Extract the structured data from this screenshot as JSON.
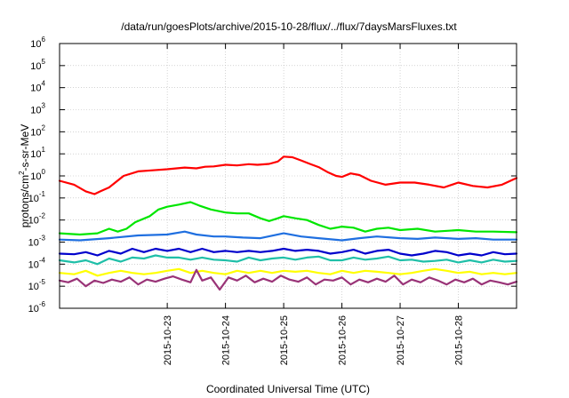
{
  "chart_data": {
    "type": "line",
    "title": "/data/run/goesPlots/archive/2015-10-28/flux/../flux/7daysMarsFluxes.txt",
    "xlabel": "Coordinated Universal Time (UTC)",
    "ylabel": "protons/cm2-s-sr-MeV",
    "ylabel_parts": {
      "pre": "protons/cm",
      "sup": "2",
      "post": "-s-sr-MeV"
    },
    "y_scale": "log",
    "ylim_exp": [
      -6,
      6
    ],
    "y_ticks": [
      {
        "base": "10",
        "exp": "-6"
      },
      {
        "base": "10",
        "exp": "-5"
      },
      {
        "base": "10",
        "exp": "-4"
      },
      {
        "base": "10",
        "exp": "-3"
      },
      {
        "base": "10",
        "exp": "-2"
      },
      {
        "base": "10",
        "exp": "-1"
      },
      {
        "base": "10",
        "exp": "0"
      },
      {
        "base": "10",
        "exp": "1"
      },
      {
        "base": "10",
        "exp": "2"
      },
      {
        "base": "10",
        "exp": "3"
      },
      {
        "base": "10",
        "exp": "4"
      },
      {
        "base": "10",
        "exp": "5"
      },
      {
        "base": "10",
        "exp": "6"
      }
    ],
    "xlim_days": [
      -1.85,
      6.0
    ],
    "x_ticks": [
      {
        "label": "2015-10-23",
        "day": 0
      },
      {
        "label": "2015-10-24",
        "day": 1
      },
      {
        "label": "2015-10-25",
        "day": 2
      },
      {
        "label": "2015-10-26",
        "day": 3
      },
      {
        "label": "2015-10-27",
        "day": 4
      },
      {
        "label": "2015-10-28",
        "day": 5
      }
    ],
    "grid": true,
    "legend": "none",
    "series": [
      {
        "color": "#ff0000",
        "days": [
          -1.85,
          -1.6,
          -1.4,
          -1.25,
          -1.15,
          -1.0,
          -0.75,
          -0.5,
          -0.25,
          0,
          0.3,
          0.5,
          0.65,
          0.8,
          1.0,
          1.2,
          1.4,
          1.55,
          1.75,
          1.9,
          2.0,
          2.15,
          2.3,
          2.45,
          2.6,
          2.75,
          2.9,
          3.0,
          3.15,
          3.3,
          3.5,
          3.75,
          4.0,
          4.25,
          4.5,
          4.75,
          5.0,
          5.25,
          5.5,
          5.75,
          6.0
        ],
        "values": [
          0.6,
          0.4,
          0.2,
          0.15,
          0.2,
          0.3,
          1.0,
          1.6,
          1.8,
          2.0,
          2.4,
          2.2,
          2.6,
          2.7,
          3.2,
          3.0,
          3.4,
          3.2,
          3.5,
          4.5,
          7.5,
          7.0,
          5.0,
          3.5,
          2.5,
          1.5,
          1.0,
          0.9,
          1.3,
          1.1,
          0.6,
          0.4,
          0.5,
          0.5,
          0.4,
          0.3,
          0.5,
          0.35,
          0.3,
          0.4,
          0.8
        ]
      },
      {
        "color": "#00e600",
        "days": [
          -1.85,
          -1.5,
          -1.2,
          -1.0,
          -0.85,
          -0.7,
          -0.55,
          -0.3,
          -0.15,
          0,
          0.2,
          0.4,
          0.55,
          0.75,
          1.0,
          1.2,
          1.4,
          1.6,
          1.75,
          1.9,
          2.0,
          2.2,
          2.4,
          2.6,
          2.8,
          3.0,
          3.2,
          3.4,
          3.6,
          3.8,
          4.0,
          4.3,
          4.6,
          5.0,
          5.3,
          5.6,
          6.0
        ],
        "values": [
          0.0025,
          0.0022,
          0.0025,
          0.004,
          0.003,
          0.004,
          0.008,
          0.015,
          0.03,
          0.04,
          0.05,
          0.065,
          0.045,
          0.03,
          0.022,
          0.02,
          0.02,
          0.012,
          0.009,
          0.012,
          0.015,
          0.012,
          0.01,
          0.006,
          0.004,
          0.005,
          0.0045,
          0.003,
          0.004,
          0.0045,
          0.0035,
          0.004,
          0.003,
          0.0035,
          0.003,
          0.003,
          0.0028
        ]
      },
      {
        "color": "#1f6fe0",
        "days": [
          -1.85,
          -1.5,
          -1.0,
          -0.5,
          0,
          0.3,
          0.5,
          0.8,
          1.0,
          1.3,
          1.6,
          2.0,
          2.3,
          2.6,
          3.0,
          3.3,
          3.6,
          4.0,
          4.3,
          4.6,
          5.0,
          5.3,
          5.6,
          6.0
        ],
        "values": [
          0.0013,
          0.0012,
          0.0015,
          0.002,
          0.0022,
          0.003,
          0.0022,
          0.0018,
          0.0018,
          0.0016,
          0.0015,
          0.0025,
          0.0018,
          0.0015,
          0.0012,
          0.0015,
          0.0018,
          0.0015,
          0.0014,
          0.0016,
          0.0014,
          0.0015,
          0.0013,
          0.0013
        ]
      },
      {
        "color": "#0000cc",
        "days": [
          -1.85,
          -1.6,
          -1.4,
          -1.2,
          -1.0,
          -0.8,
          -0.6,
          -0.4,
          -0.2,
          0,
          0.2,
          0.4,
          0.6,
          0.8,
          1.0,
          1.2,
          1.4,
          1.6,
          1.8,
          2.0,
          2.2,
          2.4,
          2.6,
          2.8,
          3.0,
          3.2,
          3.4,
          3.6,
          3.8,
          4.0,
          4.2,
          4.4,
          4.6,
          4.8,
          5.0,
          5.2,
          5.4,
          5.6,
          5.8,
          6.0
        ],
        "values": [
          0.0003,
          0.00028,
          0.00035,
          0.00025,
          0.0004,
          0.0003,
          0.0005,
          0.00035,
          0.0005,
          0.0004,
          0.0005,
          0.00035,
          0.0005,
          0.00035,
          0.0004,
          0.00035,
          0.0004,
          0.00035,
          0.0004,
          0.0005,
          0.0004,
          0.00045,
          0.0004,
          0.0003,
          0.00035,
          0.00045,
          0.0003,
          0.0004,
          0.00045,
          0.0003,
          0.00025,
          0.0003,
          0.0004,
          0.00035,
          0.00025,
          0.0003,
          0.00025,
          0.00035,
          0.00028,
          0.0003
        ]
      },
      {
        "color": "#1fbfa8",
        "days": [
          -1.85,
          -1.6,
          -1.4,
          -1.2,
          -1.0,
          -0.8,
          -0.6,
          -0.4,
          -0.2,
          0,
          0.2,
          0.4,
          0.6,
          0.8,
          1.0,
          1.2,
          1.4,
          1.6,
          1.8,
          2.0,
          2.2,
          2.4,
          2.6,
          2.8,
          3.0,
          3.2,
          3.4,
          3.6,
          3.8,
          4.0,
          4.2,
          4.4,
          4.6,
          4.8,
          5.0,
          5.2,
          5.4,
          5.6,
          5.8,
          6.0
        ],
        "values": [
          0.00015,
          0.00012,
          0.00015,
          0.0001,
          0.00018,
          0.00013,
          0.0002,
          0.00018,
          0.00025,
          0.0002,
          0.0002,
          0.00016,
          0.0002,
          0.00016,
          0.00015,
          0.00013,
          0.0002,
          0.00015,
          0.00018,
          0.0002,
          0.00016,
          0.0002,
          0.00022,
          0.00015,
          0.00015,
          0.0002,
          0.00016,
          0.00018,
          0.00022,
          0.00015,
          0.00016,
          0.00013,
          0.00014,
          0.00016,
          0.00012,
          0.00015,
          0.00012,
          0.00016,
          0.00013,
          0.00014
        ]
      },
      {
        "color": "#ffff00",
        "days": [
          -1.85,
          -1.6,
          -1.4,
          -1.2,
          -1.0,
          -0.8,
          -0.6,
          -0.4,
          -0.2,
          0,
          0.2,
          0.4,
          0.6,
          0.8,
          1.0,
          1.2,
          1.4,
          1.6,
          1.8,
          2.0,
          2.2,
          2.4,
          2.6,
          2.8,
          3.0,
          3.2,
          3.4,
          3.6,
          3.8,
          4.0,
          4.2,
          4.4,
          4.6,
          4.8,
          5.0,
          5.2,
          5.4,
          5.6,
          5.8,
          6.0
        ],
        "values": [
          4e-05,
          3.5e-05,
          5e-05,
          3e-05,
          4e-05,
          5e-05,
          4e-05,
          3.5e-05,
          4e-05,
          5e-05,
          6e-05,
          4e-05,
          5e-05,
          4e-05,
          3.5e-05,
          5e-05,
          4e-05,
          5e-05,
          4e-05,
          5e-05,
          4.5e-05,
          5e-05,
          4e-05,
          3.5e-05,
          5e-05,
          4e-05,
          5e-05,
          4.5e-05,
          4e-05,
          3.5e-05,
          4e-05,
          5e-05,
          6e-05,
          5e-05,
          4e-05,
          4.5e-05,
          3.5e-05,
          4e-05,
          3.5e-05,
          4e-05
        ]
      },
      {
        "color": "#993377",
        "days": [
          -1.85,
          -1.7,
          -1.55,
          -1.4,
          -1.25,
          -1.1,
          -0.95,
          -0.8,
          -0.65,
          -0.5,
          -0.35,
          -0.2,
          -0.05,
          0.1,
          0.25,
          0.4,
          0.5,
          0.6,
          0.75,
          0.9,
          1.05,
          1.2,
          1.35,
          1.5,
          1.65,
          1.8,
          1.95,
          2.1,
          2.25,
          2.4,
          2.55,
          2.7,
          2.85,
          3.0,
          3.15,
          3.3,
          3.45,
          3.6,
          3.75,
          3.9,
          4.05,
          4.2,
          4.35,
          4.5,
          4.65,
          4.8,
          4.95,
          5.1,
          5.25,
          5.4,
          5.55,
          5.7,
          5.85,
          6.0
        ],
        "values": [
          1.8e-05,
          1.5e-05,
          2.2e-05,
          1e-05,
          1.8e-05,
          1.4e-05,
          2e-05,
          1.6e-05,
          2.5e-05,
          1.2e-05,
          2e-05,
          1.6e-05,
          2.2e-05,
          2.8e-05,
          2e-05,
          1.5e-05,
          5.5e-05,
          1.8e-05,
          2.5e-05,
          7e-06,
          2.5e-05,
          1.8e-05,
          3e-05,
          1.5e-05,
          2.2e-05,
          1.6e-05,
          3e-05,
          2e-05,
          1.6e-05,
          2.5e-05,
          1.2e-05,
          2e-05,
          1.8e-05,
          2.5e-05,
          1.2e-05,
          2e-05,
          1.5e-05,
          2.2e-05,
          1.6e-05,
          3e-05,
          1.2e-05,
          2e-05,
          1.5e-05,
          2.5e-05,
          1.8e-05,
          1.2e-05,
          2e-05,
          1.5e-05,
          2.2e-05,
          1.2e-05,
          1.8e-05,
          1.5e-05,
          1.2e-05,
          1.6e-05
        ]
      }
    ]
  }
}
